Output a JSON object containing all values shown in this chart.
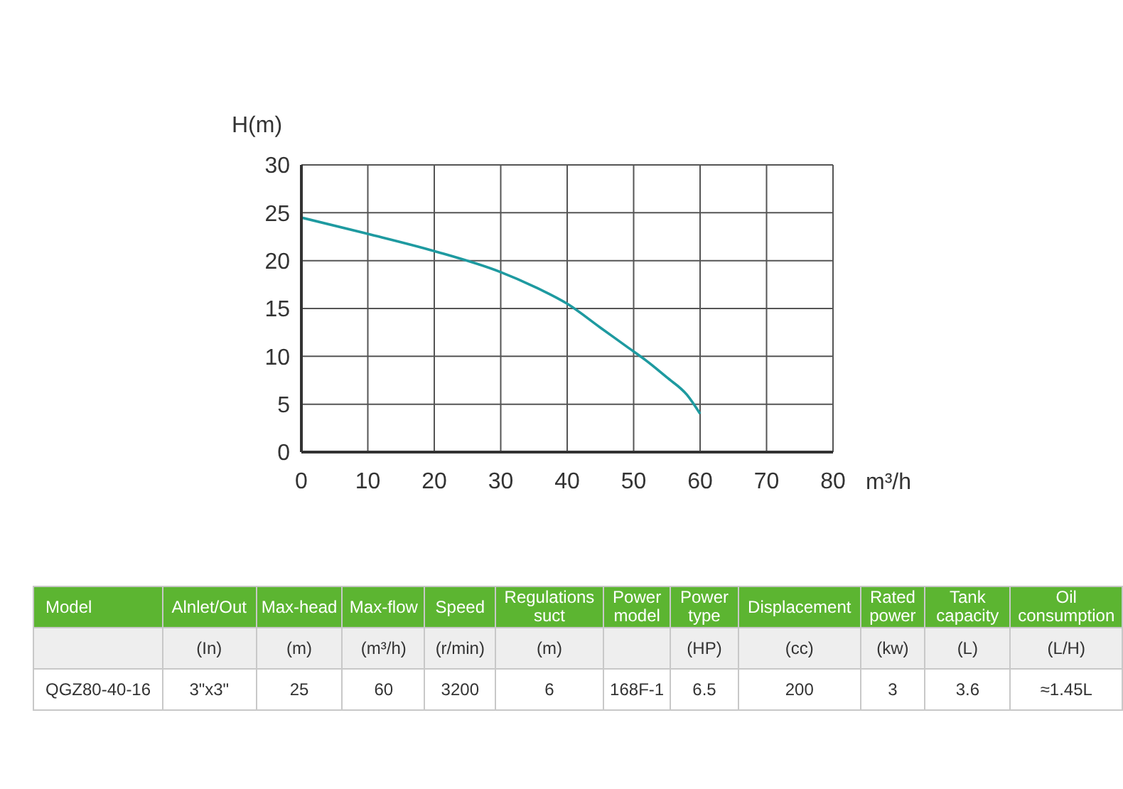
{
  "chart_data": {
    "type": "line",
    "xlabel": "m³/h",
    "ylabel": "H(m)",
    "x": [
      0,
      10,
      20,
      30,
      35,
      40,
      45,
      49,
      52,
      55,
      58,
      60
    ],
    "series": [
      {
        "color": "#1e9aa0",
        "values": [
          24.5,
          22.8,
          21,
          18.8,
          17.3,
          15.5,
          13,
          11,
          9.5,
          7.8,
          6,
          4
        ]
      }
    ],
    "xlim": [
      0,
      80
    ],
    "xticks": [
      0,
      10,
      20,
      30,
      40,
      50,
      60,
      70,
      80
    ],
    "ylim": [
      0,
      30
    ],
    "yticks": [
      0,
      5,
      10,
      15,
      20,
      25,
      30
    ],
    "grid": true,
    "legend": false,
    "marker": "none",
    "line_style": "solid",
    "annotations": [
      "Model",
      "Alnlet/Out",
      "Max-head",
      "Max-flow",
      "Speed",
      "Regulations suct",
      "Power model",
      "Power type",
      "Displacement",
      "Rated power",
      "Tank capacity",
      "Oil consumption",
      "(In)",
      "(m)",
      "(m³/h)",
      "(r/min)",
      "(m)",
      "(HP)",
      "(cc)",
      "(kw)",
      "(L)",
      "(L/H)",
      "QGZ80-40-16",
      "3\"x3\"",
      "25",
      "60",
      "3200",
      "6",
      "168F-1",
      "6.5",
      "200",
      "3",
      "3.6",
      "≈1.45L"
    ]
  }
}
